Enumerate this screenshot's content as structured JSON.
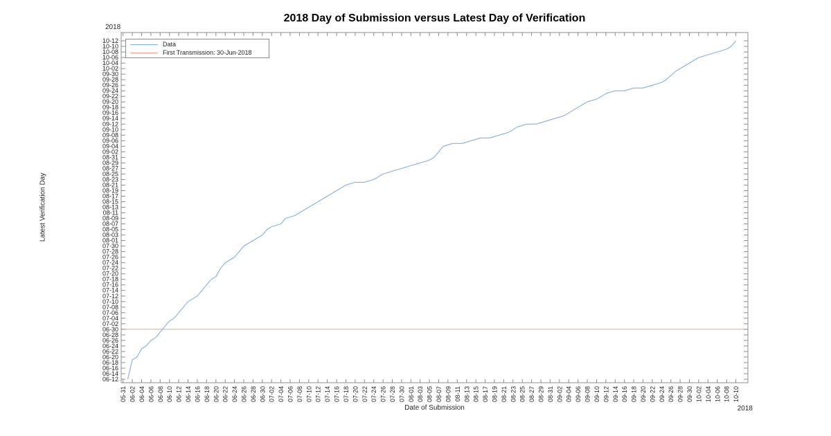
{
  "chart_data": {
    "type": "line",
    "title": "2018 Day of Submission versus Latest Day of Verification",
    "xlabel": "Date of Submission",
    "ylabel": "Latest Verification Day",
    "year_label_top_left": "2018",
    "year_label_bottom_right": "2018",
    "background_color": "#ffffff",
    "axis_color": "#8c8c8c",
    "tick_label_color": "#262626",
    "grid": false,
    "legend_position": "top-left-inside",
    "legend": [
      {
        "label": "Data",
        "color": "#82b1de"
      },
      {
        "label": "First Transmission: 30-Jun-2018",
        "color": "#f29b7d"
      }
    ],
    "x_range_days": [
      150.6,
      285.6
    ],
    "y_range_days": [
      161.75,
      288.0
    ],
    "x_ticks": [
      "05-31",
      "06-02",
      "06-04",
      "06-06",
      "06-08",
      "06-10",
      "06-12",
      "06-14",
      "06-16",
      "06-18",
      "06-20",
      "06-22",
      "06-24",
      "06-26",
      "06-28",
      "06-30",
      "07-02",
      "07-04",
      "07-06",
      "07-08",
      "07-10",
      "07-12",
      "07-14",
      "07-16",
      "07-18",
      "07-20",
      "07-22",
      "07-24",
      "07-26",
      "07-28",
      "07-30",
      "08-01",
      "08-03",
      "08-05",
      "08-07",
      "08-09",
      "08-11",
      "08-13",
      "08-15",
      "08-17",
      "08-19",
      "08-21",
      "08-23",
      "08-25",
      "08-27",
      "08-29",
      "08-31",
      "09-02",
      "09-04",
      "09-06",
      "09-08",
      "09-10",
      "09-12",
      "09-14",
      "09-16",
      "09-18",
      "09-20",
      "09-22",
      "09-24",
      "09-26",
      "09-28",
      "09-30",
      "10-02",
      "10-04",
      "10-06",
      "10-08",
      "10-10"
    ],
    "y_ticks": [
      "06-12",
      "06-14",
      "06-16",
      "06-18",
      "06-20",
      "06-22",
      "06-24",
      "06-26",
      "06-28",
      "06-30",
      "07-02",
      "07-04",
      "07-06",
      "07-08",
      "07-10",
      "07-12",
      "07-14",
      "07-16",
      "07-18",
      "07-20",
      "07-22",
      "07-24",
      "07-26",
      "07-28",
      "07-30",
      "08-01",
      "08-03",
      "08-05",
      "08-07",
      "08-09",
      "08-11",
      "08-13",
      "08-15",
      "08-17",
      "08-19",
      "08-21",
      "08-23",
      "08-25",
      "08-27",
      "08-29",
      "08-31",
      "09-02",
      "09-04",
      "09-06",
      "09-08",
      "09-10",
      "09-12",
      "09-14",
      "09-16",
      "09-18",
      "09-20",
      "09-22",
      "09-24",
      "09-26",
      "09-28",
      "09-30",
      "10-02",
      "10-04",
      "10-06",
      "10-08",
      "10-10",
      "10-12"
    ],
    "reference_line": {
      "name": "First Transmission: 30-Jun-2018",
      "y": "06-30",
      "color": "#f29b7d"
    },
    "series": [
      {
        "name": "Data",
        "color": "#82b1de",
        "points": [
          [
            "06-01",
            "06-12"
          ],
          [
            "06-02",
            "06-19"
          ],
          [
            "06-03",
            "06-20"
          ],
          [
            "06-04",
            "06-23"
          ],
          [
            "06-05",
            "06-24"
          ],
          [
            "06-06",
            "06-26"
          ],
          [
            "06-07",
            "06-27"
          ],
          [
            "06-08",
            "06-29"
          ],
          [
            "06-09",
            "07-01"
          ],
          [
            "06-10",
            "07-03"
          ],
          [
            "06-11",
            "07-04"
          ],
          [
            "06-12",
            "07-06"
          ],
          [
            "06-13",
            "07-08"
          ],
          [
            "06-14",
            "07-10"
          ],
          [
            "06-15",
            "07-11"
          ],
          [
            "06-16",
            "07-12"
          ],
          [
            "06-17",
            "07-14"
          ],
          [
            "06-18",
            "07-16"
          ],
          [
            "06-19",
            "07-18"
          ],
          [
            "06-20",
            "07-19"
          ],
          [
            "06-21",
            "07-22"
          ],
          [
            "06-22",
            "07-24"
          ],
          [
            "06-23",
            "07-25"
          ],
          [
            "06-24",
            "07-26"
          ],
          [
            "06-25",
            "07-28"
          ],
          [
            "06-26",
            "07-30"
          ],
          [
            "06-27",
            "07-31"
          ],
          [
            "06-28",
            "08-01"
          ],
          [
            "06-29",
            "08-02"
          ],
          [
            "06-30",
            "08-03"
          ],
          [
            "07-01",
            "08-05"
          ],
          [
            "07-02",
            "08-06"
          ],
          [
            "07-04",
            "08-07"
          ],
          [
            "07-05",
            "08-09"
          ],
          [
            "07-07",
            "08-10"
          ],
          [
            "07-08",
            "08-11"
          ],
          [
            "07-10",
            "08-13"
          ],
          [
            "07-12",
            "08-15"
          ],
          [
            "07-13",
            "08-16"
          ],
          [
            "07-14",
            "08-17"
          ],
          [
            "07-16",
            "08-19"
          ],
          [
            "07-18",
            "08-21"
          ],
          [
            "07-20",
            "08-22"
          ],
          [
            "07-22",
            "08-22"
          ],
          [
            "07-24",
            "08-23"
          ],
          [
            "07-26",
            "08-25"
          ],
          [
            "07-28",
            "08-26"
          ],
          [
            "07-30",
            "08-27"
          ],
          [
            "08-01",
            "08-28"
          ],
          [
            "08-03",
            "08-29"
          ],
          [
            "08-05",
            "08-30"
          ],
          [
            "08-06",
            "08-31"
          ],
          [
            "08-08",
            "09-04"
          ],
          [
            "08-10",
            "09-05"
          ],
          [
            "08-12",
            "09-05"
          ],
          [
            "08-14",
            "09-06"
          ],
          [
            "08-16",
            "09-07"
          ],
          [
            "08-18",
            "09-07"
          ],
          [
            "08-20",
            "09-08"
          ],
          [
            "08-22",
            "09-09"
          ],
          [
            "08-24",
            "09-11"
          ],
          [
            "08-26",
            "09-12"
          ],
          [
            "08-28",
            "09-12"
          ],
          [
            "08-30",
            "09-13"
          ],
          [
            "09-01",
            "09-14"
          ],
          [
            "09-03",
            "09-15"
          ],
          [
            "09-05",
            "09-17"
          ],
          [
            "09-06",
            "09-18"
          ],
          [
            "09-08",
            "09-20"
          ],
          [
            "09-10",
            "09-21"
          ],
          [
            "09-12",
            "09-23"
          ],
          [
            "09-14",
            "09-24"
          ],
          [
            "09-16",
            "09-24"
          ],
          [
            "09-18",
            "09-25"
          ],
          [
            "09-20",
            "09-25"
          ],
          [
            "09-22",
            "09-26"
          ],
          [
            "09-24",
            "09-27"
          ],
          [
            "09-25",
            "09-28"
          ],
          [
            "09-27",
            "10-01"
          ],
          [
            "09-28",
            "10-02"
          ],
          [
            "09-30",
            "10-04"
          ],
          [
            "10-02",
            "10-06"
          ],
          [
            "10-04",
            "10-07"
          ],
          [
            "10-06",
            "10-08"
          ],
          [
            "10-08",
            "10-09"
          ],
          [
            "10-09",
            "10-10"
          ],
          [
            "10-10",
            "10-12"
          ]
        ]
      }
    ]
  }
}
